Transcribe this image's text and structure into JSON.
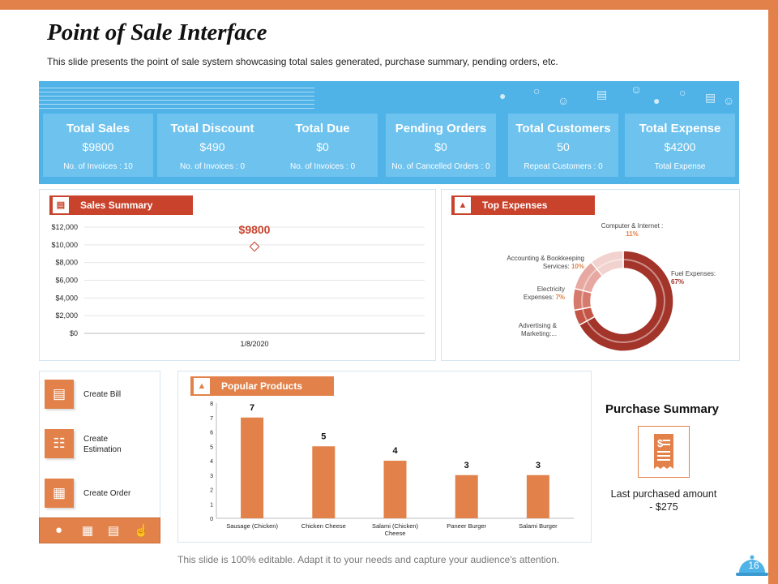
{
  "title": "Point of Sale Interface",
  "subtitle": "This slide presents the point of sale system showcasing total sales generated, purchase summary, pending orders, etc.",
  "kpis": [
    {
      "title": "Total Sales",
      "value": "$9800",
      "sub": "No. of Invoices : 10"
    },
    {
      "title": "Total Discount",
      "value": "$490",
      "sub": "No. of Invoices : 0"
    },
    {
      "title": "Total Due",
      "value": "$0",
      "sub": "No. of Invoices : 0"
    },
    {
      "title": "Pending Orders",
      "value": "$0",
      "sub": "No. of Cancelled Orders : 0"
    },
    {
      "title": "Total Customers",
      "value": "50",
      "sub": "Repeat Customers : 0"
    },
    {
      "title": "Total Expense",
      "value": "$4200",
      "sub": "Total Expense"
    }
  ],
  "sales_summary": {
    "header": "Sales Summary"
  },
  "top_expenses": {
    "header": "Top Expenses"
  },
  "popular_products": {
    "header": "Popular Products"
  },
  "side_menu": [
    {
      "label": "Create Bill"
    },
    {
      "label": "Create Estimation"
    },
    {
      "label": "Create Order"
    }
  ],
  "purchase_summary": {
    "title": "Purchase Summary",
    "text": "Last purchased amount - $275"
  },
  "footer": "This slide is 100% editable. Adapt it to your needs and capture your audience's attention.",
  "page_number": "16",
  "colors": {
    "orange": "#e2824a",
    "red": "#c9432c",
    "blue": "#4fb3e8",
    "kpi": "#6ec2ee",
    "donut_dark": "#a2342a"
  },
  "chart_data": [
    {
      "type": "line",
      "title": "Sales Summary",
      "x": [
        "1/8/2020"
      ],
      "series": [
        {
          "name": "Sales",
          "values": [
            9800
          ]
        }
      ],
      "data_labels": [
        "$9800"
      ],
      "y_ticks": [
        "$0",
        "$2,000",
        "$4,000",
        "$6,000",
        "$8,000",
        "$10,000",
        "$12,000"
      ],
      "ylim": [
        0,
        12000
      ]
    },
    {
      "type": "pie",
      "title": "Top Expenses",
      "slices": [
        {
          "name": "Fuel Expenses:",
          "value": 67,
          "label": "67%"
        },
        {
          "name": "Advertising & Marketing:...",
          "value": 5,
          "label": ""
        },
        {
          "name": "Electricity Expenses:",
          "value": 7,
          "label": "7%"
        },
        {
          "name": "Accounting & Bookkeeping Services:",
          "value": 10,
          "label": "10%"
        },
        {
          "name": "Computer & Internet :",
          "value": 11,
          "label": "11%"
        }
      ]
    },
    {
      "type": "bar",
      "title": "Popular Products",
      "categories": [
        "Sausage (Chicken)",
        "Chicken Cheese",
        "Salami (Chicken) Cheese",
        "Paneer Burger",
        "Salami Burger"
      ],
      "values": [
        7,
        5,
        4,
        3,
        3
      ],
      "y_ticks": [
        "0",
        "1",
        "2",
        "3",
        "4",
        "5",
        "6",
        "7",
        "8"
      ],
      "ylim": [
        0,
        8
      ]
    }
  ]
}
